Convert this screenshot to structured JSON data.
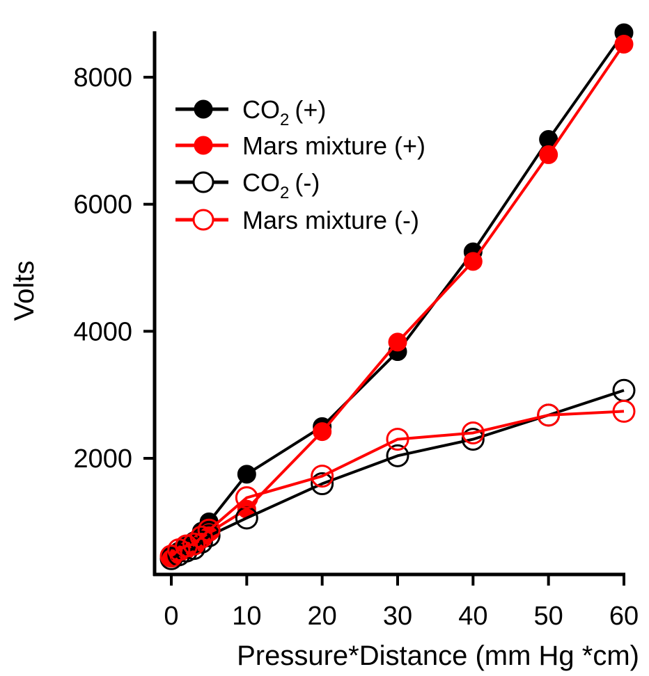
{
  "chart_data": {
    "type": "line",
    "title": "",
    "xlabel": "Pressure*Distance (mm Hg *cm)",
    "ylabel": "Volts",
    "xlim": [
      -2,
      62
    ],
    "ylim": [
      300,
      8700
    ],
    "xticks": [
      0,
      10,
      20,
      30,
      40,
      50,
      60
    ],
    "yticks": [
      2000,
      4000,
      6000,
      8000
    ],
    "grid": false,
    "legend_position": "top-left",
    "series": [
      {
        "name": "CO2 (+)",
        "color": "#000000",
        "marker": "filled-circle",
        "x": [
          0,
          1,
          2,
          3,
          4,
          5,
          10,
          20,
          30,
          40,
          50,
          60
        ],
        "y": [
          480,
          540,
          620,
          700,
          850,
          1000,
          1750,
          2500,
          3680,
          5250,
          7020,
          8700
        ]
      },
      {
        "name": "Mars mixture (+)",
        "color": "#ff0000",
        "marker": "filled-circle",
        "x": [
          0,
          1,
          2,
          3,
          4,
          5,
          10,
          20,
          30,
          40,
          50,
          60
        ],
        "y": [
          450,
          500,
          560,
          620,
          720,
          830,
          1200,
          2420,
          3830,
          5100,
          6780,
          8520
        ]
      },
      {
        "name": "CO2 (-)",
        "color": "#000000",
        "marker": "open-circle",
        "x": [
          0,
          1,
          2,
          3,
          4,
          5,
          10,
          20,
          30,
          40,
          50,
          60
        ],
        "y": [
          420,
          480,
          540,
          580,
          680,
          780,
          1060,
          1600,
          2040,
          2300,
          2680,
          3070
        ]
      },
      {
        "name": "Mars mixture (-)",
        "color": "#ff0000",
        "marker": "open-circle",
        "x": [
          0,
          1,
          2,
          3,
          4,
          5,
          10,
          20,
          30,
          40,
          50,
          60
        ],
        "y": [
          460,
          560,
          620,
          650,
          760,
          870,
          1380,
          1720,
          2300,
          2400,
          2680,
          2740
        ]
      }
    ]
  },
  "legend": {
    "items": [
      {
        "main": "CO",
        "sub": "2",
        "suffix": "(+)"
      },
      {
        "main": "Mars mixture (+)",
        "sub": "",
        "suffix": ""
      },
      {
        "main": "CO",
        "sub": "2",
        "suffix": "(-)"
      },
      {
        "main": "Mars mixture (-)",
        "sub": "",
        "suffix": ""
      }
    ]
  }
}
